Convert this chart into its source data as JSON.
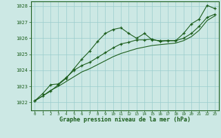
{
  "x": [
    0,
    1,
    2,
    3,
    4,
    5,
    6,
    7,
    8,
    9,
    10,
    11,
    12,
    13,
    14,
    15,
    16,
    17,
    18,
    19,
    20,
    21,
    22,
    23
  ],
  "line1": [
    1022.1,
    1022.4,
    1022.7,
    1023.1,
    1023.5,
    1024.1,
    1024.7,
    1025.2,
    1025.8,
    1026.3,
    1026.55,
    1026.65,
    1026.3,
    1026.0,
    1026.3,
    1025.9,
    1025.85,
    1025.85,
    1025.85,
    1026.3,
    1026.9,
    1027.2,
    1028.05,
    1027.85
  ],
  "line2": [
    1022.1,
    1022.55,
    1023.1,
    1023.15,
    1023.55,
    1024.0,
    1024.3,
    1024.5,
    1024.8,
    1025.1,
    1025.4,
    1025.65,
    1025.75,
    1025.9,
    1025.9,
    1025.95,
    1025.8,
    1025.85,
    1025.85,
    1026.0,
    1026.3,
    1026.75,
    1027.3,
    1027.5
  ],
  "line3": [
    1022.1,
    1022.4,
    1022.75,
    1023.0,
    1023.3,
    1023.6,
    1023.9,
    1024.1,
    1024.35,
    1024.6,
    1024.85,
    1025.05,
    1025.2,
    1025.35,
    1025.45,
    1025.55,
    1025.6,
    1025.65,
    1025.7,
    1025.85,
    1026.1,
    1026.5,
    1027.1,
    1027.4
  ],
  "ylim": [
    1021.5,
    1028.3
  ],
  "yticks": [
    1022,
    1023,
    1024,
    1025,
    1026,
    1027,
    1028
  ],
  "xlabel": "Graphe pression niveau de la mer (hPa)",
  "bg_color": "#cce8e4",
  "grid_color": "#99cccc",
  "line_color": "#1a5c1a",
  "marker_color": "#1a5c1a"
}
